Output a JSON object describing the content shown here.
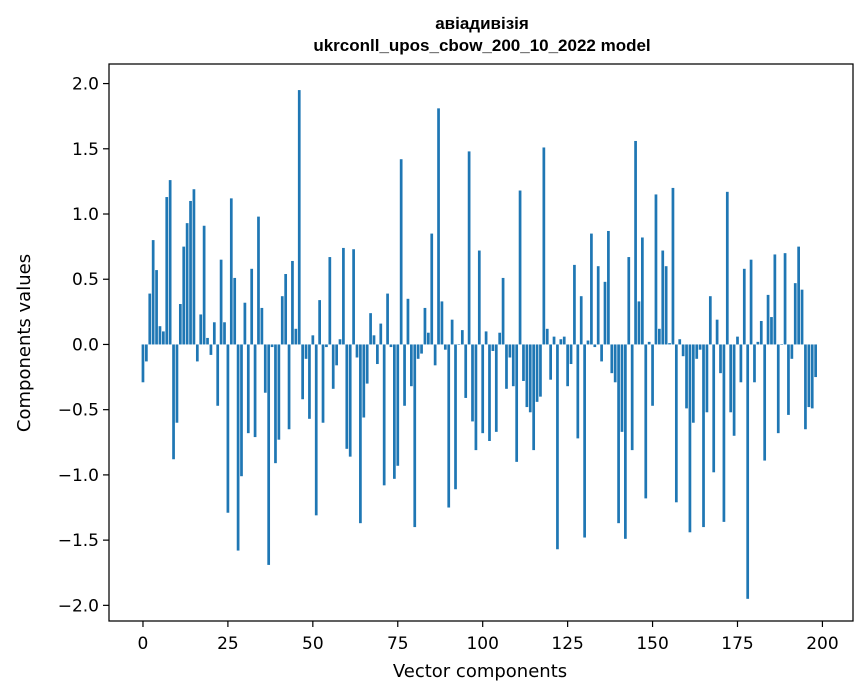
{
  "chart_data": {
    "type": "bar",
    "title": "авіадивізія",
    "subtitle": "ukrconll_upos_cbow_200_10_2022 model",
    "xlabel": "Vector components",
    "ylabel": "Components values",
    "xlim": [
      -10,
      209
    ],
    "ylim": [
      -2.12,
      2.15
    ],
    "x_ticks": [
      0,
      25,
      50,
      75,
      100,
      125,
      150,
      175,
      200
    ],
    "y_ticks": [
      2.0,
      1.5,
      1.0,
      0.5,
      0.0,
      -0.5,
      -1.0,
      -1.5,
      -2.0
    ],
    "y_tick_labels": [
      "2.0",
      "1.5",
      "1.0",
      "0.5",
      "0.0",
      "−0.5",
      "−1.0",
      "−1.5",
      "−2.0"
    ],
    "bar_color": "#1f77b4",
    "grid": false,
    "values": [
      -0.29,
      -0.13,
      0.39,
      0.8,
      0.57,
      0.14,
      0.1,
      1.13,
      1.26,
      -0.88,
      -0.6,
      0.31,
      0.75,
      0.93,
      1.1,
      1.19,
      -0.13,
      0.23,
      0.91,
      0.05,
      -0.08,
      0.17,
      -0.47,
      0.65,
      0.17,
      -1.29,
      1.12,
      0.51,
      -1.58,
      -1.01,
      0.32,
      -0.68,
      0.58,
      -0.71,
      0.98,
      0.28,
      -0.37,
      -1.69,
      -0.02,
      -0.91,
      -0.73,
      0.37,
      0.54,
      -0.65,
      0.64,
      0.12,
      1.95,
      -0.42,
      -0.11,
      -0.57,
      0.07,
      -1.31,
      0.34,
      -0.6,
      -0.02,
      0.67,
      -0.34,
      -0.16,
      0.04,
      0.74,
      -0.8,
      -0.86,
      0.73,
      -0.1,
      -1.37,
      -0.56,
      -0.3,
      0.24,
      0.07,
      -0.15,
      0.16,
      -1.08,
      0.39,
      -0.02,
      -1.03,
      -0.93,
      1.42,
      -0.47,
      0.35,
      -0.32,
      -1.4,
      -0.11,
      -0.07,
      0.28,
      0.09,
      0.85,
      -0.16,
      1.81,
      0.33,
      -0.04,
      -1.25,
      0.19,
      -1.11,
      0.0,
      0.11,
      -0.41,
      1.48,
      -0.59,
      -0.81,
      0.72,
      -0.68,
      0.1,
      -0.74,
      -0.05,
      -0.67,
      0.09,
      0.51,
      -0.34,
      -0.1,
      -0.32,
      -0.9,
      1.18,
      -0.28,
      -0.48,
      -0.52,
      -0.81,
      -0.44,
      -0.4,
      1.51,
      0.12,
      -0.27,
      0.06,
      -1.57,
      0.04,
      0.06,
      -0.32,
      -0.15,
      0.61,
      -0.72,
      0.37,
      -1.48,
      0.03,
      0.85,
      -0.02,
      0.6,
      -0.13,
      0.48,
      0.87,
      -0.22,
      -0.29,
      -1.37,
      -0.67,
      -1.49,
      0.67,
      -0.81,
      1.56,
      0.33,
      0.82,
      -1.18,
      0.02,
      -0.47,
      1.15,
      0.12,
      0.72,
      0.6,
      0.01,
      1.2,
      -1.21,
      0.04,
      -0.09,
      -0.49,
      -1.44,
      -0.6,
      -0.11,
      -0.04,
      -1.4,
      -0.52,
      0.37,
      -0.98,
      0.19,
      -0.22,
      -1.36,
      1.17,
      -0.52,
      -0.7,
      0.06,
      -0.29,
      0.58,
      -1.95,
      0.65,
      -0.29,
      0.02,
      0.18,
      -0.89,
      0.38,
      0.21,
      0.69,
      -0.68,
      0.0,
      0.7,
      -0.54,
      -0.11,
      0.47,
      0.75,
      0.42,
      -0.65,
      -0.48,
      -0.49,
      -0.25
    ]
  }
}
